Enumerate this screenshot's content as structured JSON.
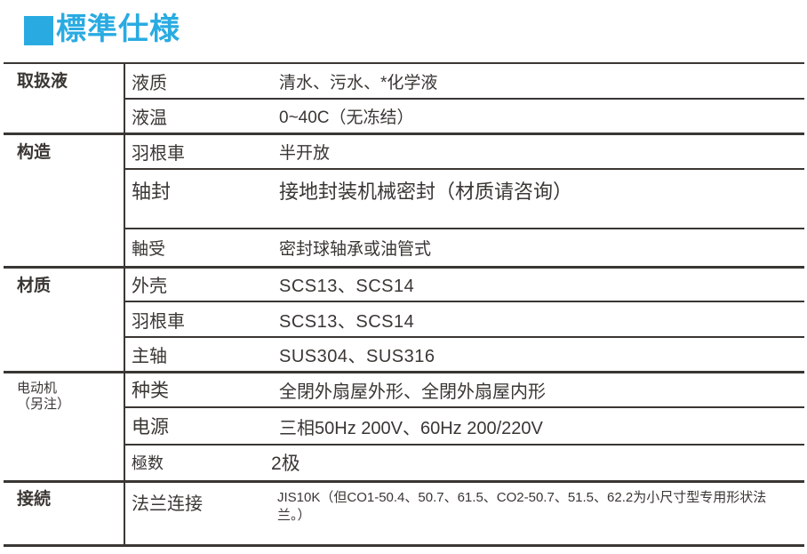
{
  "title": {
    "text": "標準仕様",
    "accent_color": "#29abe2"
  },
  "table": {
    "sections": [
      {
        "category": "取扱液",
        "rows": [
          {
            "label": "液质",
            "value": "清水、污水、*化学液"
          },
          {
            "label": "液温",
            "value": "0~40C（无冻结）"
          }
        ]
      },
      {
        "category": "构造",
        "rows": [
          {
            "label": "羽根車",
            "value": "半开放"
          },
          {
            "label": "轴封",
            "value": "接地封装机械密封（材质请咨询）"
          },
          {
            "label": "軸受",
            "value": "密封球轴承或油管式"
          }
        ]
      },
      {
        "category": "材质",
        "rows": [
          {
            "label": "外壳",
            "value": "SCS13、SCS14"
          },
          {
            "label": "羽根車",
            "value": "SCS13、SCS14"
          },
          {
            "label": "主轴",
            "value": "SUS304、SUS316"
          }
        ]
      },
      {
        "category": "电动机（另注）",
        "rows": [
          {
            "label": "种类",
            "value": "全閉外扇屋外形、全閉外扇屋内形"
          },
          {
            "label": "电源",
            "value": "三相50Hz 200V、60Hz 200/220V"
          },
          {
            "label": "極数",
            "value": "2极"
          }
        ]
      },
      {
        "category": "接続",
        "rows": [
          {
            "label": "法兰连接",
            "value": "JIS10K（但CO1-50.4、50.7、61.5、CO2-50.7、51.5、62.2为小尺寸型专用形状法兰。）"
          }
        ]
      }
    ]
  }
}
